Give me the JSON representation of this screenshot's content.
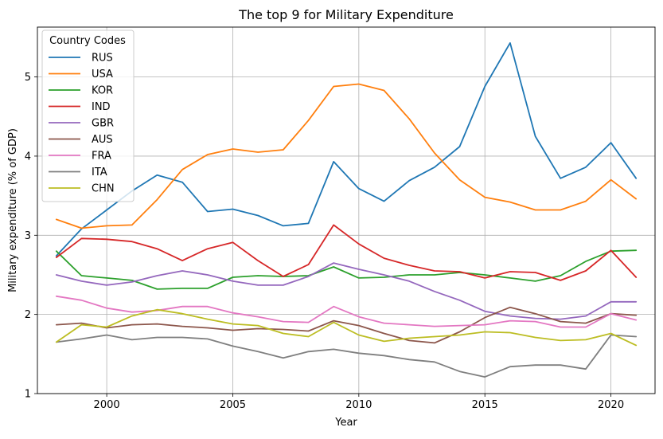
{
  "chart_data": {
    "type": "line",
    "title": "The top 9 for Military Expenditure",
    "xlabel": "Year",
    "ylabel": "Military expenditure (% of GDP)",
    "xlim": [
      1997.25,
      2021.75
    ],
    "ylim": [
      1.0,
      5.63
    ],
    "x_ticks": [
      2000,
      2005,
      2010,
      2015,
      2020
    ],
    "y_ticks": [
      1,
      2,
      3,
      4,
      5
    ],
    "grid": true,
    "legend_title": "Country Codes",
    "legend_position": "top-left",
    "x": [
      1998,
      1999,
      2000,
      2001,
      2002,
      2003,
      2004,
      2005,
      2006,
      2007,
      2008,
      2009,
      2010,
      2011,
      2012,
      2013,
      2014,
      2015,
      2016,
      2017,
      2018,
      2019,
      2020,
      2021
    ],
    "series": [
      {
        "name": "RUS",
        "color": "#1f77b4",
        "values": [
          2.74,
          3.08,
          3.32,
          3.56,
          3.76,
          3.67,
          3.3,
          3.33,
          3.25,
          3.12,
          3.15,
          3.93,
          3.59,
          3.43,
          3.69,
          3.86,
          4.12,
          4.88,
          5.43,
          4.25,
          3.72,
          3.86,
          4.17,
          3.72
        ]
      },
      {
        "name": "USA",
        "color": "#ff7f0e",
        "values": [
          3.2,
          3.09,
          3.12,
          3.13,
          3.45,
          3.83,
          4.02,
          4.09,
          4.05,
          4.08,
          4.45,
          4.88,
          4.91,
          4.83,
          4.47,
          4.04,
          3.7,
          3.48,
          3.42,
          3.32,
          3.32,
          3.43,
          3.7,
          3.46
        ]
      },
      {
        "name": "KOR",
        "color": "#2ca02c",
        "values": [
          2.8,
          2.49,
          2.46,
          2.43,
          2.32,
          2.33,
          2.33,
          2.47,
          2.49,
          2.48,
          2.49,
          2.6,
          2.46,
          2.47,
          2.5,
          2.5,
          2.53,
          2.5,
          2.46,
          2.42,
          2.49,
          2.67,
          2.8,
          2.81
        ]
      },
      {
        "name": "IND",
        "color": "#d62728",
        "values": [
          2.72,
          2.96,
          2.95,
          2.92,
          2.83,
          2.68,
          2.83,
          2.91,
          2.68,
          2.48,
          2.63,
          3.13,
          2.89,
          2.71,
          2.62,
          2.55,
          2.54,
          2.46,
          2.54,
          2.53,
          2.43,
          2.55,
          2.81,
          2.47
        ]
      },
      {
        "name": "GBR",
        "color": "#9467bd",
        "values": [
          2.5,
          2.42,
          2.37,
          2.41,
          2.49,
          2.55,
          2.5,
          2.42,
          2.37,
          2.37,
          2.48,
          2.65,
          2.57,
          2.5,
          2.42,
          2.29,
          2.18,
          2.04,
          1.98,
          1.95,
          1.94,
          1.98,
          2.16,
          2.16
        ]
      },
      {
        "name": "AUS",
        "color": "#8c564b",
        "values": [
          1.87,
          1.89,
          1.83,
          1.87,
          1.88,
          1.85,
          1.83,
          1.8,
          1.82,
          1.81,
          1.79,
          1.92,
          1.86,
          1.76,
          1.67,
          1.64,
          1.78,
          1.96,
          2.09,
          2.01,
          1.91,
          1.89,
          2.01,
          1.99
        ]
      },
      {
        "name": "FRA",
        "color": "#e377c2",
        "values": [
          2.23,
          2.18,
          2.08,
          2.03,
          2.05,
          2.1,
          2.1,
          2.02,
          1.97,
          1.91,
          1.9,
          2.1,
          1.97,
          1.89,
          1.87,
          1.85,
          1.86,
          1.87,
          1.92,
          1.91,
          1.84,
          1.84,
          2.01,
          1.93
        ]
      },
      {
        "name": "ITA",
        "color": "#7f7f7f",
        "values": [
          1.65,
          1.69,
          1.74,
          1.68,
          1.71,
          1.71,
          1.69,
          1.6,
          1.53,
          1.45,
          1.53,
          1.56,
          1.51,
          1.48,
          1.43,
          1.4,
          1.28,
          1.21,
          1.34,
          1.36,
          1.36,
          1.31,
          1.74,
          1.72
        ]
      },
      {
        "name": "CHN",
        "color": "#bcbd22",
        "values": [
          1.65,
          1.87,
          1.84,
          1.98,
          2.06,
          2.01,
          1.94,
          1.88,
          1.86,
          1.76,
          1.72,
          1.9,
          1.74,
          1.66,
          1.7,
          1.72,
          1.74,
          1.78,
          1.77,
          1.71,
          1.67,
          1.68,
          1.76,
          1.61
        ]
      }
    ]
  }
}
